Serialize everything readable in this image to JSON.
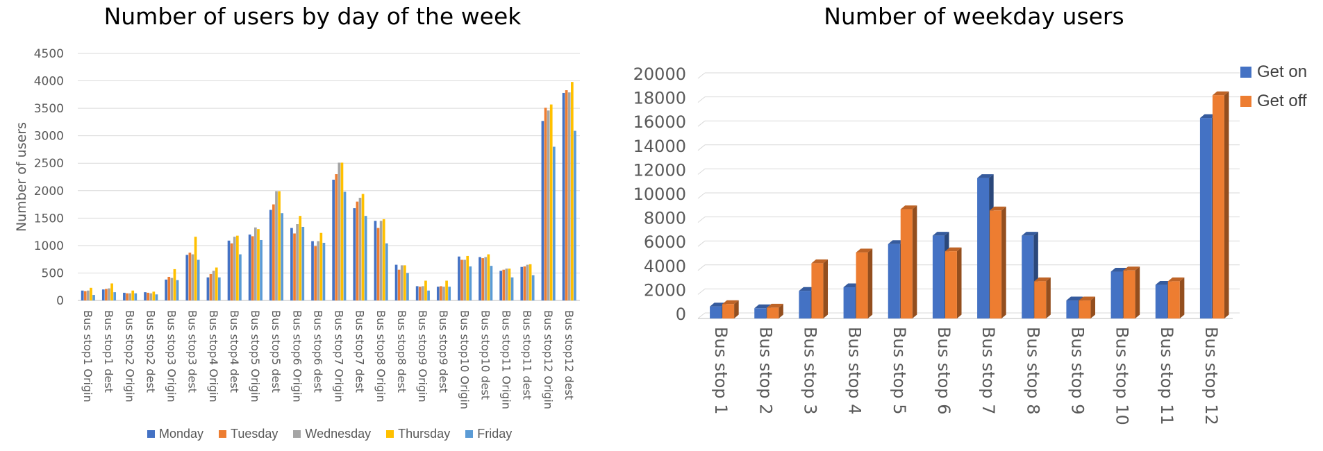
{
  "chart_data": [
    {
      "type": "bar",
      "title": "Number of users by day of the week",
      "xlabel": "",
      "ylabel": "Number of users",
      "ylim": [
        0,
        4500
      ],
      "yticks": [
        0,
        500,
        1000,
        1500,
        2000,
        2500,
        3000,
        3500,
        4000,
        4500
      ],
      "grid": true,
      "legend_position": "bottom",
      "categories": [
        "Bus stop1 Origin",
        "Bus stop1 dest",
        "Bus stop2 Origin",
        "Bus stop2 dest",
        "Bus stop3 Origin",
        "Bus stop3 dest",
        "Bus stop4 Origin",
        "Bus stop4 dest",
        "Bus stop5 Origin",
        "Bus stop5 dest",
        "Bus stop6 Origin",
        "Bus stop6 dest",
        "Bus stop7 Origin",
        "Bus stop7 dest",
        "Bus stop8 Origin",
        "Bus stop8 dest",
        "Bus stop9 Origin",
        "Bus stop9 dest",
        "Bus stop10 Origin",
        "Bus stop10 dest",
        "Bus stop11 Origin",
        "Bus stop11 dest",
        "Bus stop12 Origin",
        "Bus stop12 dest"
      ],
      "series": [
        {
          "name": "Monday",
          "color": "#4472C4",
          "values": [
            180,
            200,
            140,
            150,
            380,
            830,
            420,
            1090,
            1200,
            1650,
            1320,
            1080,
            2200,
            1680,
            1450,
            650,
            260,
            250,
            800,
            790,
            540,
            610,
            3270,
            3780
          ]
        },
        {
          "name": "Tuesday",
          "color": "#ED7D31",
          "values": [
            170,
            210,
            130,
            140,
            430,
            870,
            480,
            1040,
            1170,
            1750,
            1220,
            990,
            2300,
            1800,
            1320,
            560,
            250,
            260,
            740,
            770,
            560,
            620,
            3510,
            3830
          ]
        },
        {
          "name": "Wednesday",
          "color": "#A5A5A5",
          "values": [
            180,
            220,
            130,
            130,
            410,
            840,
            540,
            1160,
            1330,
            1990,
            1390,
            1080,
            2510,
            1870,
            1450,
            640,
            260,
            250,
            740,
            790,
            580,
            650,
            3460,
            3790
          ]
        },
        {
          "name": "Thursday",
          "color": "#FFC000",
          "values": [
            230,
            310,
            180,
            160,
            570,
            1160,
            600,
            1180,
            1300,
            1990,
            1540,
            1230,
            2510,
            1940,
            1480,
            640,
            360,
            360,
            810,
            840,
            580,
            660,
            3570,
            3980
          ]
        },
        {
          "name": "Friday",
          "color": "#5B9BD5",
          "values": [
            100,
            150,
            130,
            110,
            370,
            740,
            420,
            840,
            1100,
            1590,
            1340,
            1050,
            1980,
            1540,
            1040,
            500,
            180,
            250,
            620,
            630,
            420,
            460,
            2800,
            3090
          ]
        }
      ]
    },
    {
      "type": "bar",
      "title": "Number of weekday users",
      "xlabel": "",
      "ylabel": "",
      "ylim": [
        0,
        20000
      ],
      "yticks": [
        0,
        2000,
        4000,
        6000,
        8000,
        10000,
        12000,
        14000,
        16000,
        18000,
        20000
      ],
      "grid": true,
      "style": "3d",
      "legend_position": "top-right",
      "categories": [
        "Bus stop 1",
        "Bus stop 2",
        "Bus stop 3",
        "Bus stop 4",
        "Bus stop 5",
        "Bus stop 6",
        "Bus stop 7",
        "Bus stop 8",
        "Bus stop 9",
        "Bus stop 10",
        "Bus stop 11",
        "Bus stop 12"
      ],
      "series": [
        {
          "name": "Get on",
          "color": "#4472C4",
          "values": [
            1000,
            850,
            2300,
            2600,
            6200,
            6900,
            11700,
            6900,
            1500,
            3900,
            2800,
            16700
          ]
        },
        {
          "name": "Get off",
          "color": "#ED7D31",
          "values": [
            1200,
            900,
            4600,
            5500,
            9100,
            5600,
            9000,
            3100,
            1500,
            4000,
            3100,
            18600
          ]
        }
      ]
    }
  ]
}
